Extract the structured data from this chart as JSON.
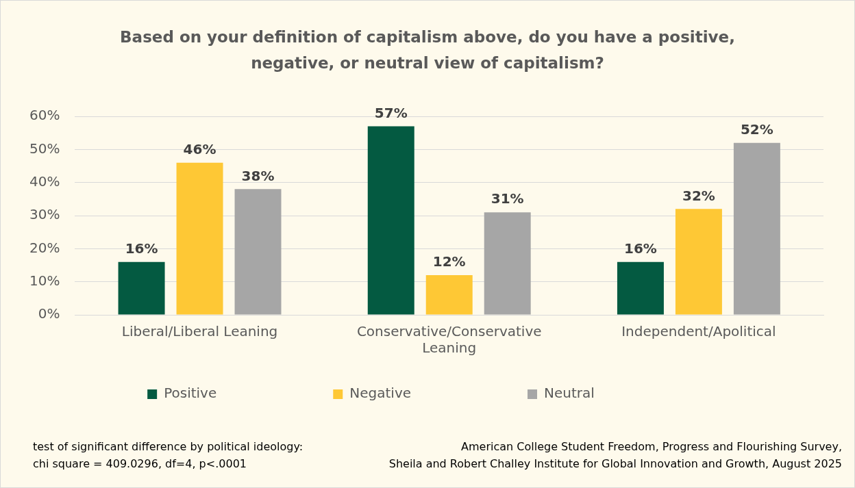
{
  "chart_data": {
    "type": "bar",
    "title": "Based on your definition of capitalism above, do you have a positive, negative, or neutral view of capitalism?",
    "categories": [
      "Liberal/Liberal Leaning",
      "Conservative/Conservative Leaning",
      "Independent/Apolitical"
    ],
    "series": [
      {
        "name": "Positive",
        "color": "#045a41",
        "values": [
          16,
          57,
          16
        ],
        "value_labels": [
          "16%",
          "57%",
          "16%"
        ]
      },
      {
        "name": "Negative",
        "color": "#fec835",
        "values": [
          46,
          12,
          32
        ],
        "value_labels": [
          "46%",
          "12%",
          "32%"
        ]
      },
      {
        "name": "Neutral",
        "color": "#a6a6a6",
        "values": [
          38,
          31,
          52
        ],
        "value_labels": [
          "38%",
          "31%",
          "52%"
        ]
      }
    ],
    "ylim": [
      0,
      60
    ],
    "yticks": [
      {
        "value": 0,
        "label": "0%"
      },
      {
        "value": 10,
        "label": "10%"
      },
      {
        "value": 20,
        "label": "20%"
      },
      {
        "value": 30,
        "label": "30%"
      },
      {
        "value": 40,
        "label": "40%"
      },
      {
        "value": 50,
        "label": "50%"
      },
      {
        "value": 60,
        "label": "60%"
      }
    ],
    "grid": "y",
    "legend": "bottom",
    "annotations": [
      "test of significant difference by political ideology:\nchi square = 409.0296, df=4, p<.0001",
      "American College Student Freedom, Progress and Flourishing Survey,\nSheila and Robert Challey Institute for Global Innovation and Growth, August 2025"
    ]
  }
}
